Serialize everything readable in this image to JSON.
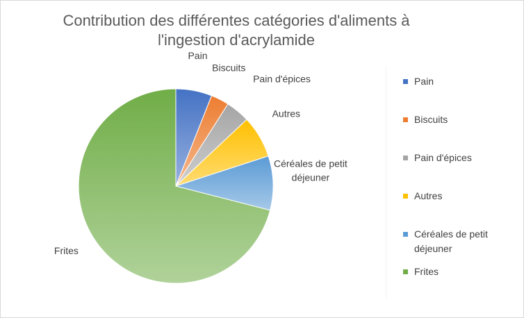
{
  "chart_data": {
    "type": "pie",
    "title": "Contribution des différentes catégories d'aliments à l'ingestion d'acrylamide",
    "title_lines": [
      "Contribution des différentes catégories d'aliments à",
      "l'ingestion d'acrylamide"
    ],
    "categories": [
      "Pain",
      "Biscuits",
      "Pain d'épices",
      "Autres",
      "Céréales de petit déjeuner",
      "Frites"
    ],
    "values": [
      6,
      3,
      4,
      7,
      9,
      71
    ],
    "colors": [
      "#4472C4",
      "#ED7D31",
      "#A5A5A5",
      "#FFC000",
      "#5B9BD5",
      "#70AD47"
    ],
    "legend_position": "right",
    "data_labels": "category names outside slices"
  }
}
